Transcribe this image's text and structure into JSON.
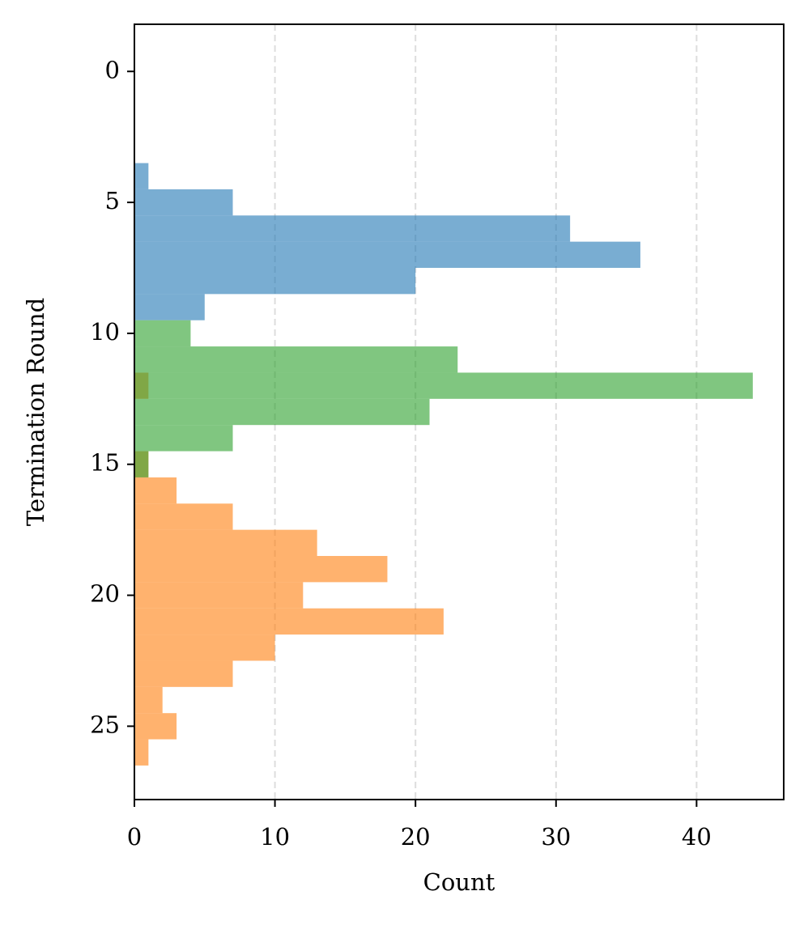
{
  "chart_data": {
    "type": "histogram",
    "orientation": "horizontal",
    "xlabel": "Count",
    "ylabel": "Termination Round",
    "xlim": [
      0,
      46.2
    ],
    "xticks": [
      0,
      10,
      20,
      30,
      40
    ],
    "ylim": [
      27.8,
      -1.8
    ],
    "yticks": [
      0,
      5,
      10,
      15,
      20,
      25
    ],
    "grid": true,
    "alpha": 0.6,
    "series": [
      {
        "color": "#1f77b4",
        "bins": [
          3.5,
          4.5,
          5.5,
          6.5,
          7.5,
          8.5,
          9.5
        ],
        "values": [
          1,
          7,
          31,
          36,
          20,
          5
        ]
      },
      {
        "color": "#ff7f0e",
        "bins": [
          11.5,
          12.5,
          13.5,
          14.5,
          15.5,
          16.5,
          17.5,
          18.5,
          19.5,
          20.5,
          21.5,
          22.5,
          23.5,
          24.5,
          25.5,
          26.5
        ],
        "values": [
          1,
          0,
          0,
          1,
          3,
          7,
          13,
          18,
          12,
          22,
          10,
          7,
          2,
          3,
          1
        ]
      },
      {
        "color": "#2ca02c",
        "bins": [
          9.5,
          10.5,
          11.5,
          12.5,
          13.5,
          14.5,
          15.5
        ],
        "values": [
          4,
          23,
          44,
          21,
          7,
          1
        ]
      }
    ]
  }
}
